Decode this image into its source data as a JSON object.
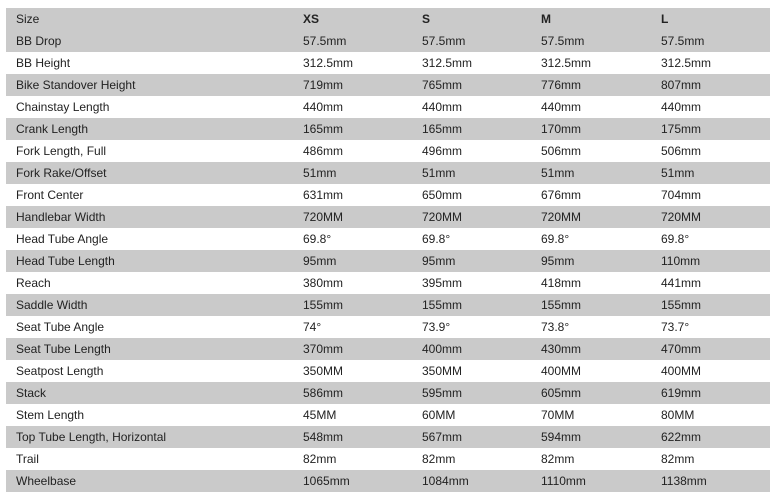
{
  "header": [
    "Size",
    "XS",
    "S",
    "M",
    "L"
  ],
  "rows": [
    [
      "BB Drop",
      "57.5mm",
      "57.5mm",
      "57.5mm",
      "57.5mm"
    ],
    [
      "BB Height",
      "312.5mm",
      "312.5mm",
      "312.5mm",
      "312.5mm"
    ],
    [
      "Bike Standover Height",
      "719mm",
      "765mm",
      "776mm",
      "807mm"
    ],
    [
      "Chainstay Length",
      "440mm",
      "440mm",
      "440mm",
      "440mm"
    ],
    [
      "Crank Length",
      "165mm",
      "165mm",
      "170mm",
      "175mm"
    ],
    [
      "Fork Length, Full",
      "486mm",
      "496mm",
      "506mm",
      "506mm"
    ],
    [
      "Fork Rake/Offset",
      "51mm",
      "51mm",
      "51mm",
      "51mm"
    ],
    [
      "Front Center",
      "631mm",
      "650mm",
      "676mm",
      "704mm"
    ],
    [
      "Handlebar Width",
      "720MM",
      "720MM",
      "720MM",
      "720MM"
    ],
    [
      "Head Tube Angle",
      "69.8°",
      "69.8°",
      "69.8°",
      "69.8°"
    ],
    [
      "Head Tube Length",
      "95mm",
      "95mm",
      "95mm",
      "110mm"
    ],
    [
      "Reach",
      "380mm",
      "395mm",
      "418mm",
      "441mm"
    ],
    [
      "Saddle Width",
      "155mm",
      "155mm",
      "155mm",
      "155mm"
    ],
    [
      "Seat Tube Angle",
      "74°",
      "73.9°",
      "73.8°",
      "73.7°"
    ],
    [
      "Seat Tube Length",
      "370mm",
      "400mm",
      "430mm",
      "470mm"
    ],
    [
      "Seatpost Length",
      "350MM",
      "350MM",
      "400MM",
      "400MM"
    ],
    [
      "Stack",
      "586mm",
      "595mm",
      "605mm",
      "619mm"
    ],
    [
      "Stem Length",
      "45MM",
      "60MM",
      "70MM",
      "80MM"
    ],
    [
      "Top Tube Length, Horizontal",
      "548mm",
      "567mm",
      "594mm",
      "622mm"
    ],
    [
      "Trail",
      "82mm",
      "82mm",
      "82mm",
      "82mm"
    ],
    [
      "Wheelbase",
      "1065mm",
      "1084mm",
      "1110mm",
      "1138mm"
    ]
  ],
  "colors": {
    "stripe": "#cacaca",
    "text": "#222222"
  }
}
